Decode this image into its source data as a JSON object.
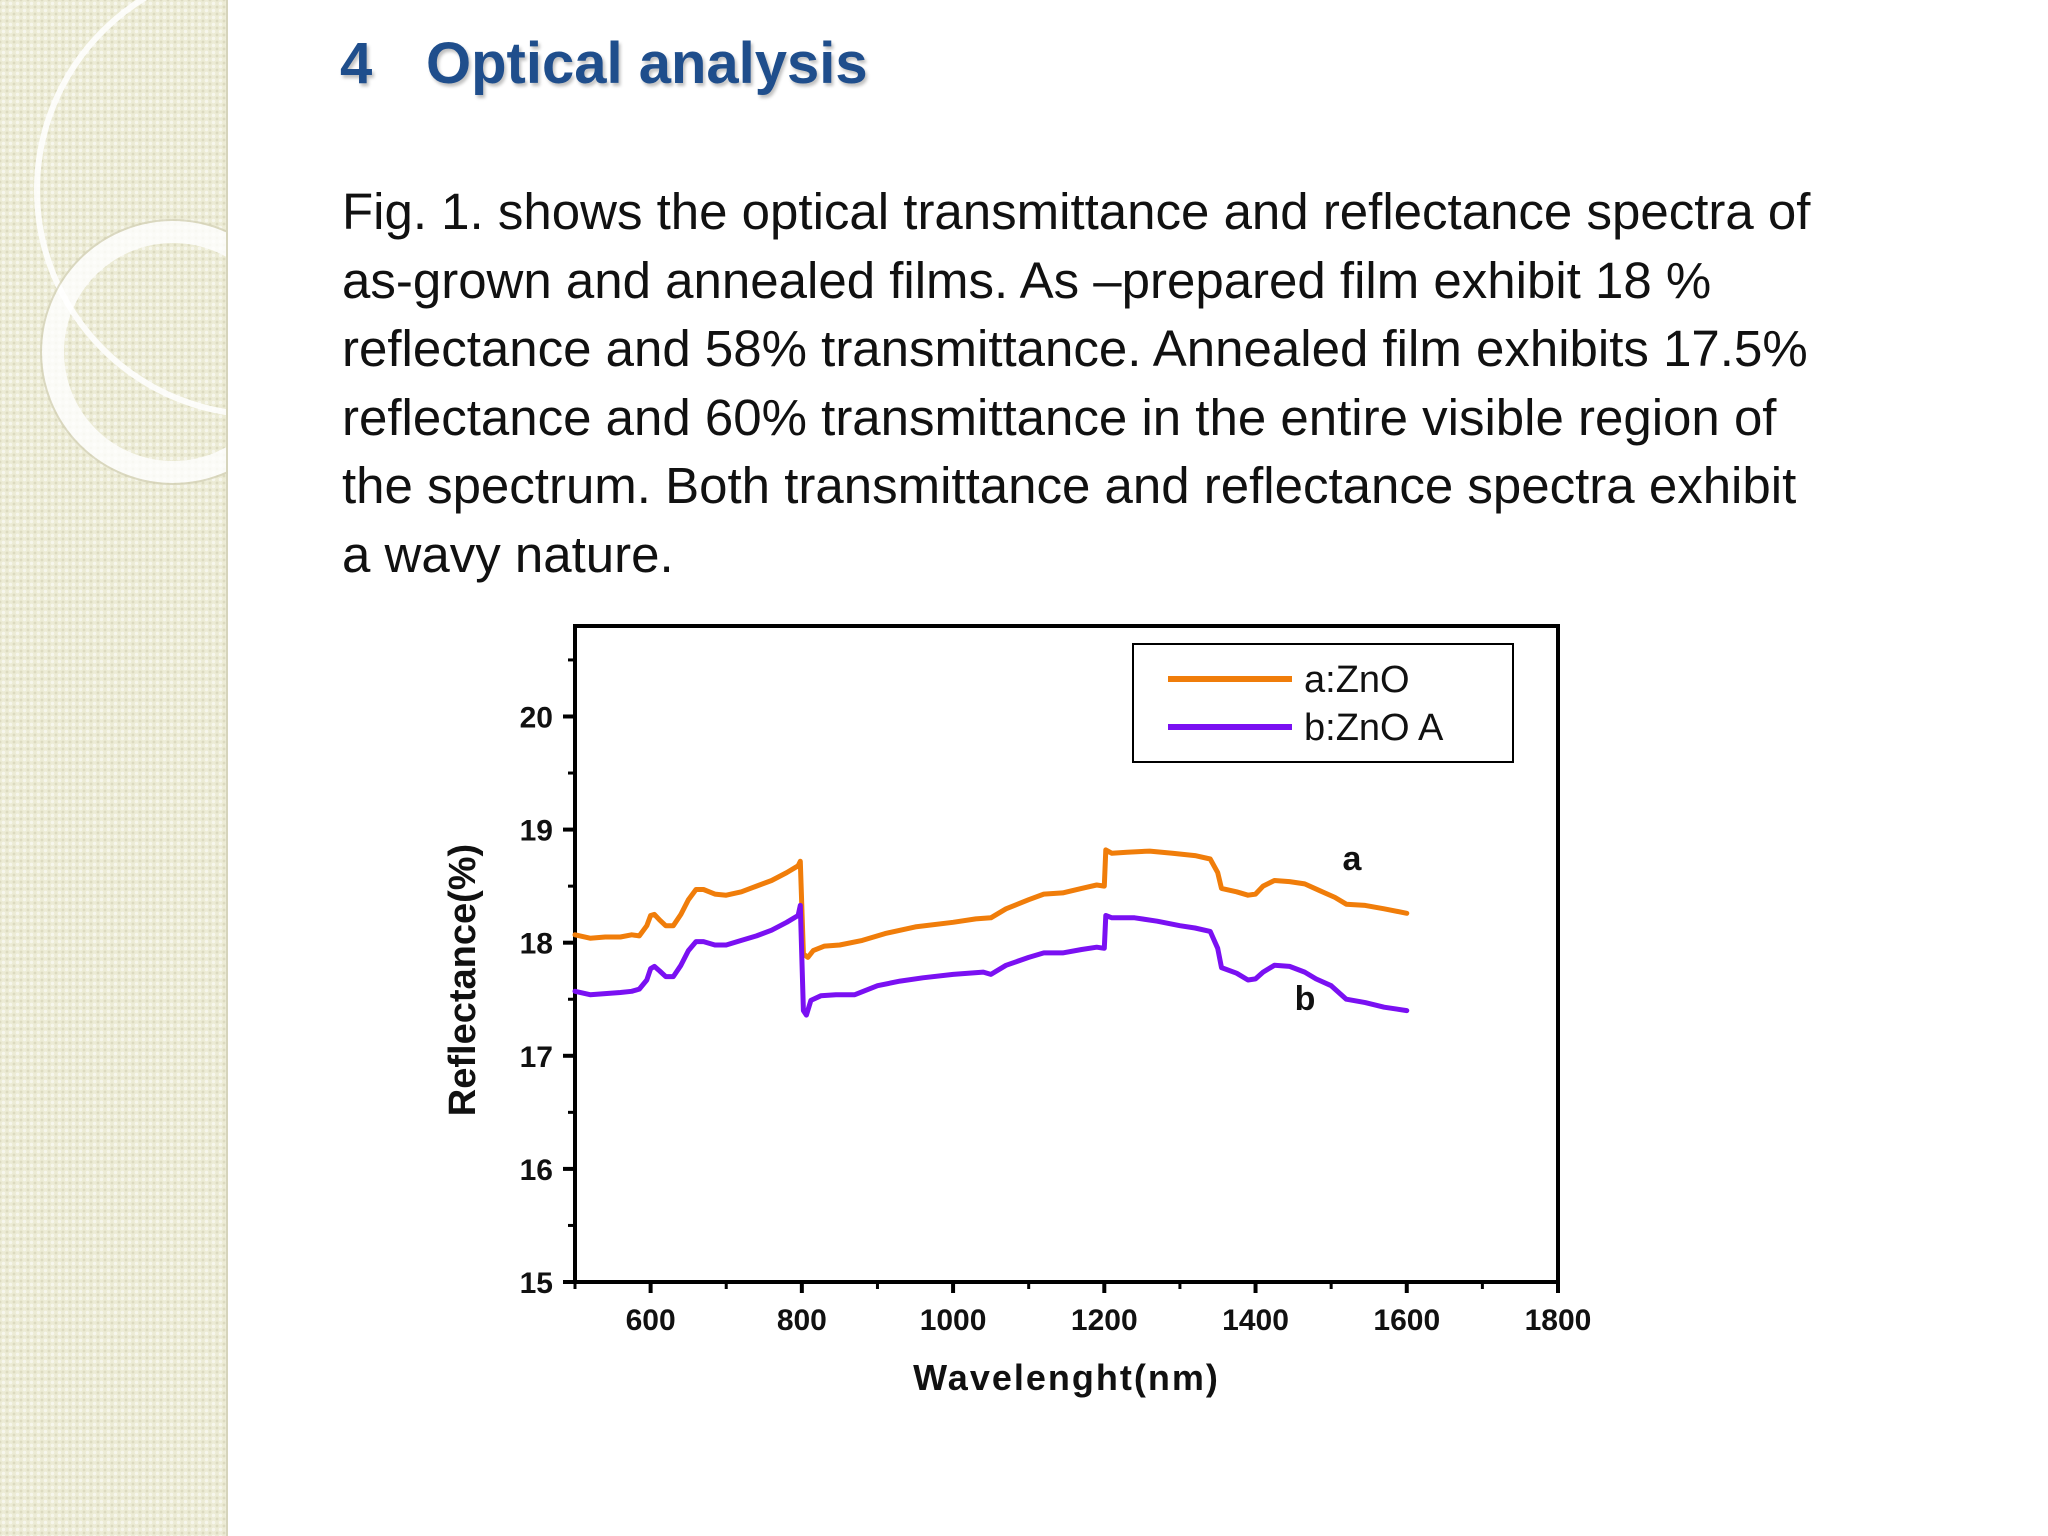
{
  "slide": {
    "heading_number": "4",
    "heading_text": "Optical analysis",
    "body_lines": [
      "Fig. 1. shows the optical transmittance and reflectance spectra of",
      "as-grown and annealed films. As –prepared film exhibit 18 %",
      "reflectance and 58% transmittance. Annealed film exhibits 17.5%",
      "reflectance and 60% transmittance in the entire visible region of",
      "the spectrum.  Both transmittance and reflectance spectra exhibit",
      "a wavy nature."
    ]
  },
  "chart_data": {
    "type": "line",
    "title": "",
    "xlabel": "Wavelenght(nm)",
    "ylabel": "Reflectance(%)",
    "xlim": [
      500,
      1800
    ],
    "ylim": [
      15,
      20.8
    ],
    "x_ticks": [
      600,
      800,
      1000,
      1200,
      1400,
      1600,
      1800
    ],
    "y_ticks": [
      15,
      16,
      17,
      18,
      19,
      20
    ],
    "grid": false,
    "legend_position": "top-right",
    "series": [
      {
        "name": "a:ZnO",
        "curve_label": "a",
        "color": "#f07d0a",
        "points": [
          [
            500,
            18.07
          ],
          [
            520,
            18.04
          ],
          [
            540,
            18.05
          ],
          [
            560,
            18.05
          ],
          [
            575,
            18.07
          ],
          [
            585,
            18.06
          ],
          [
            595,
            18.15
          ],
          [
            600,
            18.24
          ],
          [
            605,
            18.25
          ],
          [
            612,
            18.2
          ],
          [
            620,
            18.15
          ],
          [
            630,
            18.15
          ],
          [
            640,
            18.25
          ],
          [
            650,
            18.38
          ],
          [
            660,
            18.47
          ],
          [
            670,
            18.47
          ],
          [
            685,
            18.43
          ],
          [
            700,
            18.42
          ],
          [
            720,
            18.45
          ],
          [
            740,
            18.5
          ],
          [
            760,
            18.55
          ],
          [
            780,
            18.62
          ],
          [
            795,
            18.68
          ],
          [
            798,
            18.72
          ],
          [
            802,
            17.9
          ],
          [
            808,
            17.87
          ],
          [
            815,
            17.93
          ],
          [
            830,
            17.97
          ],
          [
            850,
            17.98
          ],
          [
            880,
            18.02
          ],
          [
            910,
            18.08
          ],
          [
            950,
            18.14
          ],
          [
            1000,
            18.18
          ],
          [
            1030,
            18.21
          ],
          [
            1050,
            18.22
          ],
          [
            1070,
            18.3
          ],
          [
            1100,
            18.38
          ],
          [
            1120,
            18.43
          ],
          [
            1145,
            18.44
          ],
          [
            1170,
            18.48
          ],
          [
            1190,
            18.51
          ],
          [
            1200,
            18.5
          ],
          [
            1202,
            18.82
          ],
          [
            1210,
            18.79
          ],
          [
            1230,
            18.8
          ],
          [
            1260,
            18.81
          ],
          [
            1290,
            18.79
          ],
          [
            1320,
            18.77
          ],
          [
            1340,
            18.74
          ],
          [
            1350,
            18.62
          ],
          [
            1355,
            18.48
          ],
          [
            1375,
            18.45
          ],
          [
            1390,
            18.42
          ],
          [
            1400,
            18.43
          ],
          [
            1410,
            18.5
          ],
          [
            1425,
            18.55
          ],
          [
            1445,
            18.54
          ],
          [
            1465,
            18.52
          ],
          [
            1485,
            18.46
          ],
          [
            1505,
            18.4
          ],
          [
            1520,
            18.34
          ],
          [
            1545,
            18.33
          ],
          [
            1570,
            18.3
          ],
          [
            1600,
            18.26
          ]
        ]
      },
      {
        "name": "b:ZnO A",
        "curve_label": "b",
        "color": "#7a10f2",
        "points": [
          [
            500,
            17.57
          ],
          [
            520,
            17.54
          ],
          [
            540,
            17.55
          ],
          [
            560,
            17.56
          ],
          [
            575,
            17.57
          ],
          [
            585,
            17.59
          ],
          [
            595,
            17.67
          ],
          [
            600,
            17.77
          ],
          [
            605,
            17.79
          ],
          [
            612,
            17.75
          ],
          [
            620,
            17.7
          ],
          [
            630,
            17.7
          ],
          [
            640,
            17.8
          ],
          [
            650,
            17.93
          ],
          [
            660,
            18.01
          ],
          [
            670,
            18.01
          ],
          [
            685,
            17.98
          ],
          [
            700,
            17.98
          ],
          [
            720,
            18.02
          ],
          [
            740,
            18.06
          ],
          [
            760,
            18.11
          ],
          [
            780,
            18.18
          ],
          [
            795,
            18.24
          ],
          [
            798,
            18.33
          ],
          [
            802,
            17.4
          ],
          [
            806,
            17.36
          ],
          [
            812,
            17.49
          ],
          [
            825,
            17.53
          ],
          [
            845,
            17.54
          ],
          [
            870,
            17.54
          ],
          [
            900,
            17.62
          ],
          [
            930,
            17.66
          ],
          [
            960,
            17.69
          ],
          [
            1000,
            17.72
          ],
          [
            1040,
            17.74
          ],
          [
            1050,
            17.72
          ],
          [
            1070,
            17.8
          ],
          [
            1100,
            17.87
          ],
          [
            1120,
            17.91
          ],
          [
            1145,
            17.91
          ],
          [
            1170,
            17.94
          ],
          [
            1190,
            17.96
          ],
          [
            1200,
            17.95
          ],
          [
            1202,
            18.24
          ],
          [
            1210,
            18.22
          ],
          [
            1240,
            18.22
          ],
          [
            1270,
            18.19
          ],
          [
            1300,
            18.15
          ],
          [
            1320,
            18.13
          ],
          [
            1340,
            18.1
          ],
          [
            1350,
            17.95
          ],
          [
            1355,
            17.78
          ],
          [
            1375,
            17.73
          ],
          [
            1390,
            17.67
          ],
          [
            1400,
            17.68
          ],
          [
            1410,
            17.74
          ],
          [
            1425,
            17.8
          ],
          [
            1445,
            17.79
          ],
          [
            1465,
            17.74
          ],
          [
            1480,
            17.68
          ],
          [
            1500,
            17.62
          ],
          [
            1520,
            17.5
          ],
          [
            1545,
            17.47
          ],
          [
            1570,
            17.43
          ],
          [
            1600,
            17.4
          ]
        ]
      }
    ]
  }
}
